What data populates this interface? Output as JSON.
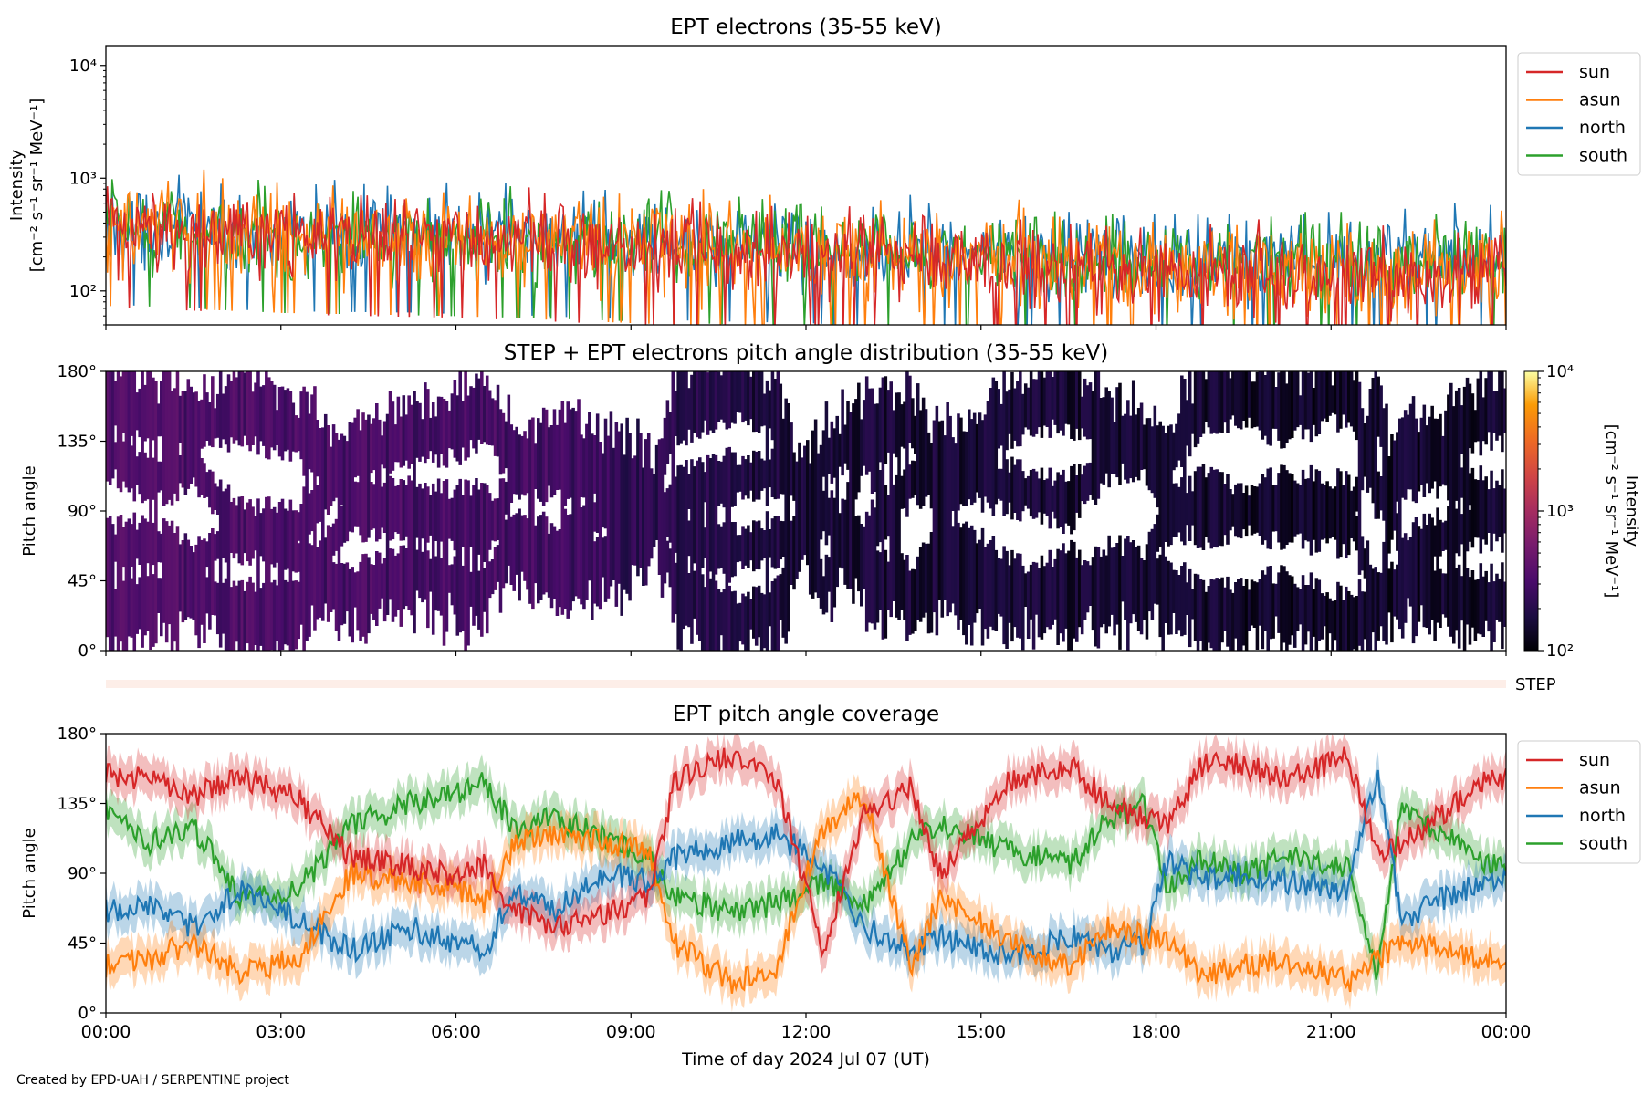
{
  "figure": {
    "credit": "Created by EPD-UAH / SERPENTINE project",
    "xlabel": "Time of day 2024 Jul 07 (UT)",
    "xticks": [
      "00:00",
      "03:00",
      "06:00",
      "09:00",
      "12:00",
      "15:00",
      "18:00",
      "21:00",
      "00:00"
    ],
    "xlim_hours": [
      0,
      24
    ]
  },
  "colors": {
    "sun": "#d62728",
    "asun": "#ff7f0e",
    "north": "#1f77b4",
    "south": "#2ca02c",
    "step_band": "#fdeee8"
  },
  "chart_data": [
    {
      "type": "line",
      "title": "EPT electrons (35-55 keV)",
      "ylabel_lines": [
        "Intensity",
        "[cm⁻² s⁻¹ sr⁻¹ MeV⁻¹]"
      ],
      "yscale": "log",
      "ylim": [
        50,
        15000
      ],
      "yticks": [
        {
          "value": 100,
          "label": "10²"
        },
        {
          "value": 1000,
          "label": "10³"
        },
        {
          "value": 10000,
          "label": "10⁴"
        }
      ],
      "legend": {
        "position": "outside-right",
        "entries": [
          "sun",
          "asun",
          "north",
          "south"
        ]
      },
      "series": [
        {
          "name": "north",
          "time_hours": [
            0,
            3,
            6,
            9,
            12,
            15,
            18,
            21,
            24
          ],
          "values": [
            380,
            330,
            320,
            280,
            260,
            220,
            200,
            190,
            200
          ],
          "noise_decades": 0.26
        },
        {
          "name": "south",
          "time_hours": [
            0,
            3,
            6,
            9,
            12,
            15,
            18,
            21,
            24
          ],
          "values": [
            380,
            320,
            300,
            270,
            240,
            210,
            190,
            180,
            190
          ],
          "noise_decades": 0.26
        },
        {
          "name": "asun",
          "time_hours": [
            0,
            3,
            6,
            9,
            12,
            15,
            18,
            21,
            24
          ],
          "values": [
            370,
            320,
            300,
            260,
            230,
            190,
            160,
            140,
            150
          ],
          "noise_decades": 0.3
        },
        {
          "name": "sun",
          "time_hours": [
            0,
            3,
            6,
            9,
            12,
            15,
            18,
            21,
            24
          ],
          "values": [
            360,
            310,
            290,
            250,
            230,
            180,
            150,
            130,
            130
          ],
          "noise_decades": 0.26
        }
      ]
    },
    {
      "type": "heatmap",
      "title": "STEP + EPT electrons pitch angle distribution (35-55 keV)",
      "ylabel": "Pitch angle",
      "ylim": [
        0,
        180
      ],
      "yticks": [
        "0°",
        "45°",
        "90°",
        "135°",
        "180°"
      ],
      "colorbar": {
        "scale": "log",
        "range": [
          100,
          10000
        ],
        "colormap": "inferno",
        "ticks": [
          {
            "value": 100,
            "label": "10²"
          },
          {
            "value": 1000,
            "label": "10³"
          },
          {
            "value": 10000,
            "label": "10⁴"
          }
        ],
        "label_lines": [
          "Intensity",
          "[cm⁻² s⁻¹ sr⁻¹ MeV⁻¹]"
        ]
      },
      "intensity_time_hours": [
        0,
        4,
        8,
        9.5,
        12,
        16,
        20,
        24
      ],
      "intensity_values": [
        330,
        300,
        280,
        200,
        160,
        150,
        140,
        140
      ]
    },
    {
      "type": "band",
      "label": "STEP"
    },
    {
      "type": "line",
      "title": "EPT pitch angle coverage",
      "ylabel": "Pitch angle",
      "ylim": [
        0,
        180
      ],
      "yticks": [
        "0°",
        "45°",
        "90°",
        "135°",
        "180°"
      ],
      "legend": {
        "position": "outside-right",
        "entries": [
          "sun",
          "asun",
          "north",
          "south"
        ]
      },
      "uncertainty_band_deg": 12,
      "time_hours": [
        0,
        0.75,
        1.5,
        2.3,
        3.3,
        4.2,
        5.2,
        6,
        6.5,
        7,
        7.7,
        8.5,
        9.3,
        9.75,
        10.7,
        11.5,
        12.3,
        13,
        13.8,
        14.3,
        15.5,
        16.5,
        17.2,
        17.8,
        18.2,
        18.8,
        19.5,
        20.2,
        21.3,
        21.8,
        22.2,
        23,
        23.7
      ],
      "series": [
        {
          "name": "sun",
          "values": [
            155,
            150,
            140,
            152,
            138,
            100,
            95,
            88,
            95,
            65,
            55,
            62,
            75,
            150,
            165,
            150,
            40,
            130,
            145,
            90,
            150,
            160,
            135,
            125,
            120,
            160,
            160,
            150,
            165,
            100,
            110,
            130,
            150
          ]
        },
        {
          "name": "asun",
          "values": [
            30,
            35,
            45,
            25,
            35,
            90,
            85,
            80,
            70,
            110,
            115,
            110,
            105,
            45,
            20,
            30,
            120,
            140,
            30,
            75,
            45,
            30,
            55,
            50,
            45,
            25,
            30,
            35,
            20,
            35,
            45,
            40,
            35
          ]
        },
        {
          "name": "north",
          "values": [
            65,
            70,
            55,
            80,
            60,
            40,
            55,
            45,
            40,
            80,
            65,
            90,
            85,
            100,
            110,
            115,
            95,
            55,
            40,
            50,
            35,
            50,
            40,
            45,
            100,
            85,
            90,
            85,
            80,
            155,
            60,
            75,
            85
          ]
        },
        {
          "name": "south",
          "values": [
            130,
            110,
            120,
            75,
            80,
            120,
            135,
            140,
            148,
            120,
            125,
            115,
            100,
            75,
            65,
            70,
            85,
            70,
            110,
            120,
            105,
            95,
            125,
            135,
            80,
            100,
            90,
            100,
            95,
            25,
            130,
            115,
            95
          ]
        }
      ]
    }
  ]
}
